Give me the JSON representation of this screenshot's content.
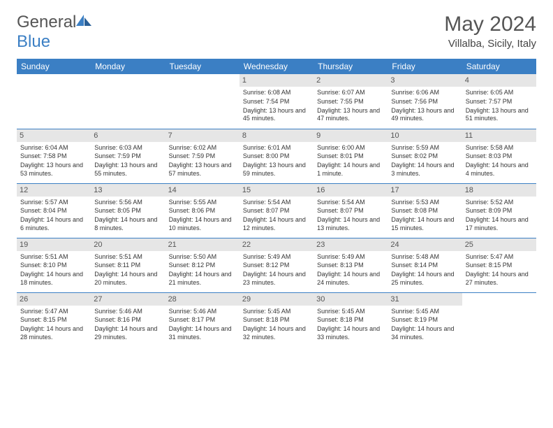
{
  "brand": {
    "name1": "General",
    "name2": "Blue"
  },
  "title": "May 2024",
  "location": "Villalba, Sicily, Italy",
  "colors": {
    "accent": "#3b7fc4",
    "dayHeaderBg": "#e6e6e6"
  },
  "weekdays": [
    "Sunday",
    "Monday",
    "Tuesday",
    "Wednesday",
    "Thursday",
    "Friday",
    "Saturday"
  ],
  "weeks": [
    [
      null,
      null,
      null,
      {
        "n": "1",
        "sr": "Sunrise: 6:08 AM",
        "ss": "Sunset: 7:54 PM",
        "dl": "Daylight: 13 hours and 45 minutes."
      },
      {
        "n": "2",
        "sr": "Sunrise: 6:07 AM",
        "ss": "Sunset: 7:55 PM",
        "dl": "Daylight: 13 hours and 47 minutes."
      },
      {
        "n": "3",
        "sr": "Sunrise: 6:06 AM",
        "ss": "Sunset: 7:56 PM",
        "dl": "Daylight: 13 hours and 49 minutes."
      },
      {
        "n": "4",
        "sr": "Sunrise: 6:05 AM",
        "ss": "Sunset: 7:57 PM",
        "dl": "Daylight: 13 hours and 51 minutes."
      }
    ],
    [
      {
        "n": "5",
        "sr": "Sunrise: 6:04 AM",
        "ss": "Sunset: 7:58 PM",
        "dl": "Daylight: 13 hours and 53 minutes."
      },
      {
        "n": "6",
        "sr": "Sunrise: 6:03 AM",
        "ss": "Sunset: 7:59 PM",
        "dl": "Daylight: 13 hours and 55 minutes."
      },
      {
        "n": "7",
        "sr": "Sunrise: 6:02 AM",
        "ss": "Sunset: 7:59 PM",
        "dl": "Daylight: 13 hours and 57 minutes."
      },
      {
        "n": "8",
        "sr": "Sunrise: 6:01 AM",
        "ss": "Sunset: 8:00 PM",
        "dl": "Daylight: 13 hours and 59 minutes."
      },
      {
        "n": "9",
        "sr": "Sunrise: 6:00 AM",
        "ss": "Sunset: 8:01 PM",
        "dl": "Daylight: 14 hours and 1 minute."
      },
      {
        "n": "10",
        "sr": "Sunrise: 5:59 AM",
        "ss": "Sunset: 8:02 PM",
        "dl": "Daylight: 14 hours and 3 minutes."
      },
      {
        "n": "11",
        "sr": "Sunrise: 5:58 AM",
        "ss": "Sunset: 8:03 PM",
        "dl": "Daylight: 14 hours and 4 minutes."
      }
    ],
    [
      {
        "n": "12",
        "sr": "Sunrise: 5:57 AM",
        "ss": "Sunset: 8:04 PM",
        "dl": "Daylight: 14 hours and 6 minutes."
      },
      {
        "n": "13",
        "sr": "Sunrise: 5:56 AM",
        "ss": "Sunset: 8:05 PM",
        "dl": "Daylight: 14 hours and 8 minutes."
      },
      {
        "n": "14",
        "sr": "Sunrise: 5:55 AM",
        "ss": "Sunset: 8:06 PM",
        "dl": "Daylight: 14 hours and 10 minutes."
      },
      {
        "n": "15",
        "sr": "Sunrise: 5:54 AM",
        "ss": "Sunset: 8:07 PM",
        "dl": "Daylight: 14 hours and 12 minutes."
      },
      {
        "n": "16",
        "sr": "Sunrise: 5:54 AM",
        "ss": "Sunset: 8:07 PM",
        "dl": "Daylight: 14 hours and 13 minutes."
      },
      {
        "n": "17",
        "sr": "Sunrise: 5:53 AM",
        "ss": "Sunset: 8:08 PM",
        "dl": "Daylight: 14 hours and 15 minutes."
      },
      {
        "n": "18",
        "sr": "Sunrise: 5:52 AM",
        "ss": "Sunset: 8:09 PM",
        "dl": "Daylight: 14 hours and 17 minutes."
      }
    ],
    [
      {
        "n": "19",
        "sr": "Sunrise: 5:51 AM",
        "ss": "Sunset: 8:10 PM",
        "dl": "Daylight: 14 hours and 18 minutes."
      },
      {
        "n": "20",
        "sr": "Sunrise: 5:51 AM",
        "ss": "Sunset: 8:11 PM",
        "dl": "Daylight: 14 hours and 20 minutes."
      },
      {
        "n": "21",
        "sr": "Sunrise: 5:50 AM",
        "ss": "Sunset: 8:12 PM",
        "dl": "Daylight: 14 hours and 21 minutes."
      },
      {
        "n": "22",
        "sr": "Sunrise: 5:49 AM",
        "ss": "Sunset: 8:12 PM",
        "dl": "Daylight: 14 hours and 23 minutes."
      },
      {
        "n": "23",
        "sr": "Sunrise: 5:49 AM",
        "ss": "Sunset: 8:13 PM",
        "dl": "Daylight: 14 hours and 24 minutes."
      },
      {
        "n": "24",
        "sr": "Sunrise: 5:48 AM",
        "ss": "Sunset: 8:14 PM",
        "dl": "Daylight: 14 hours and 25 minutes."
      },
      {
        "n": "25",
        "sr": "Sunrise: 5:47 AM",
        "ss": "Sunset: 8:15 PM",
        "dl": "Daylight: 14 hours and 27 minutes."
      }
    ],
    [
      {
        "n": "26",
        "sr": "Sunrise: 5:47 AM",
        "ss": "Sunset: 8:15 PM",
        "dl": "Daylight: 14 hours and 28 minutes."
      },
      {
        "n": "27",
        "sr": "Sunrise: 5:46 AM",
        "ss": "Sunset: 8:16 PM",
        "dl": "Daylight: 14 hours and 29 minutes."
      },
      {
        "n": "28",
        "sr": "Sunrise: 5:46 AM",
        "ss": "Sunset: 8:17 PM",
        "dl": "Daylight: 14 hours and 31 minutes."
      },
      {
        "n": "29",
        "sr": "Sunrise: 5:45 AM",
        "ss": "Sunset: 8:18 PM",
        "dl": "Daylight: 14 hours and 32 minutes."
      },
      {
        "n": "30",
        "sr": "Sunrise: 5:45 AM",
        "ss": "Sunset: 8:18 PM",
        "dl": "Daylight: 14 hours and 33 minutes."
      },
      {
        "n": "31",
        "sr": "Sunrise: 5:45 AM",
        "ss": "Sunset: 8:19 PM",
        "dl": "Daylight: 14 hours and 34 minutes."
      },
      null
    ]
  ]
}
